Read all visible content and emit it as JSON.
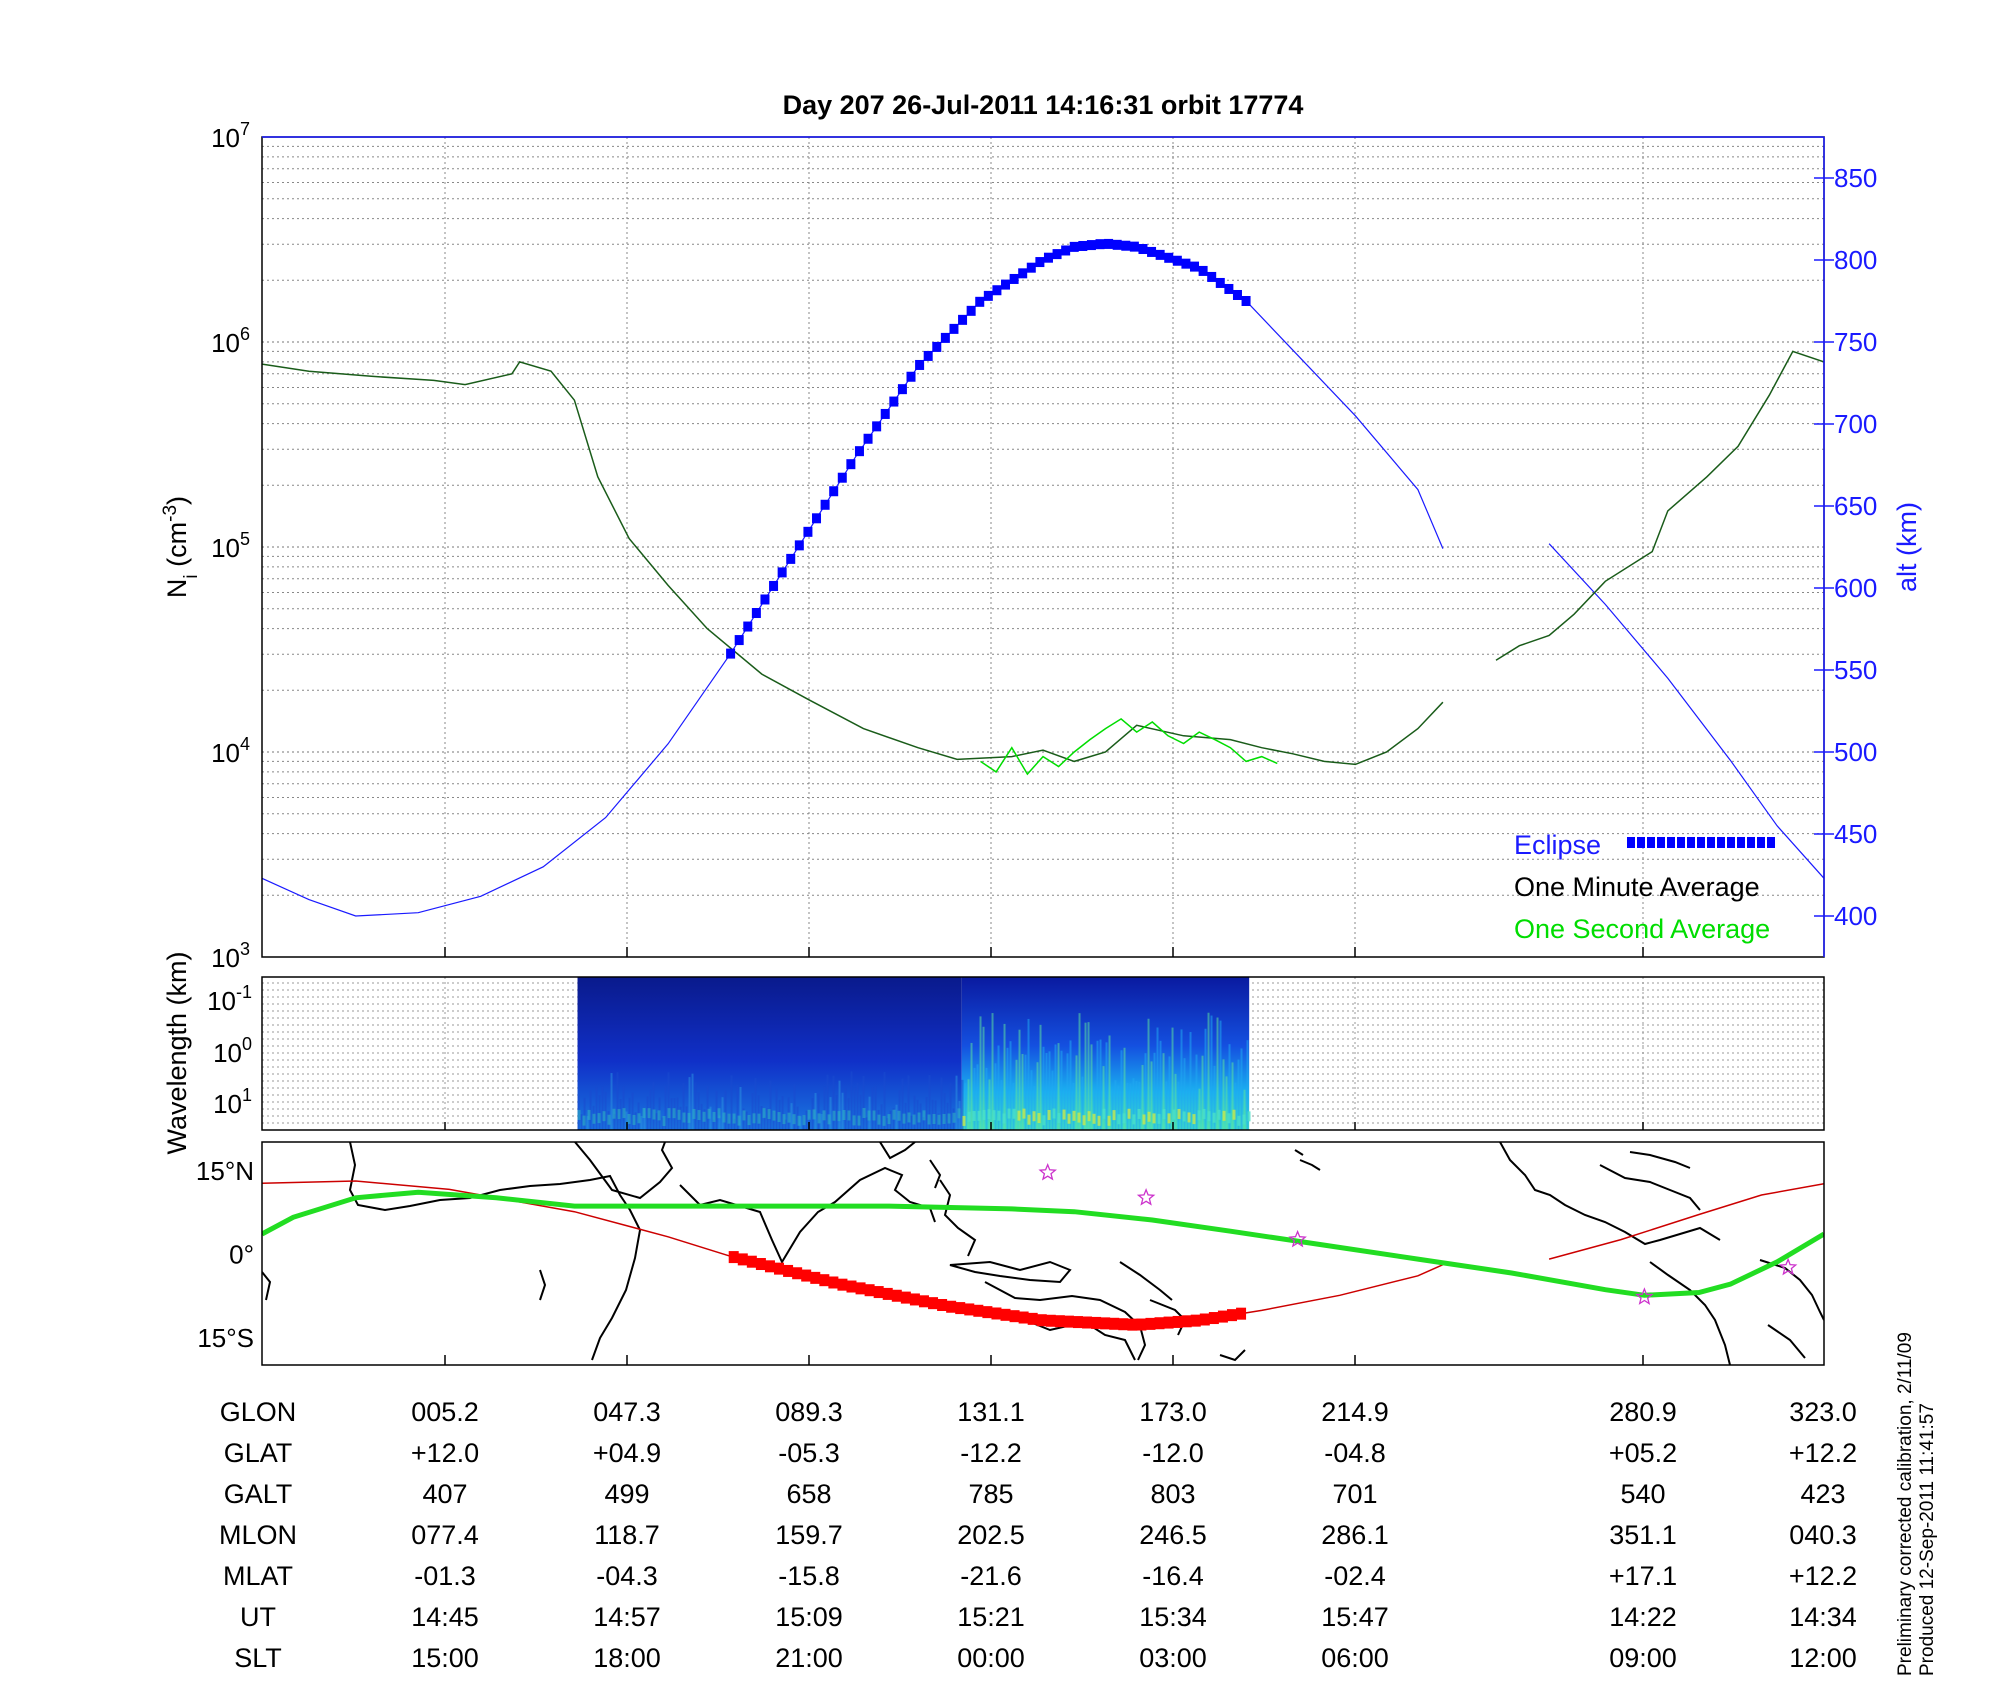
{
  "title": "Day 207  26-Jul-2011 14:16:31   orbit 17774",
  "colors": {
    "altitude_axis": "#1a1aff",
    "eclipse": "#0000ff",
    "one_minute_average": "#1a5c1a",
    "one_second_average": "#00dd00",
    "map_track": "#cc0000",
    "map_eclipse": "#ff0000",
    "map_magnetic_equator": "#22dd22",
    "map_stars": "#cc33cc"
  },
  "chart_data": [
    {
      "type": "line",
      "panel": "ion density",
      "ylabel": "N",
      "ylabel_subscript": "i",
      "ylabel_unit": " (cm",
      "ylabel_unit_exponent": "-3",
      "ylabel_unit_close": ")",
      "yscale": "log",
      "ylim": [
        1000,
        10000000
      ],
      "y_tick_labels": [
        {
          "base": "10",
          "exp": "3"
        },
        {
          "base": "10",
          "exp": "4"
        },
        {
          "base": "10",
          "exp": "5"
        },
        {
          "base": "10",
          "exp": "6"
        },
        {
          "base": "10",
          "exp": "7"
        }
      ],
      "y2label": "alt (km)",
      "y2lim": [
        375,
        875
      ],
      "y2_ticks": [
        "400",
        "450",
        "500",
        "550",
        "600",
        "650",
        "700",
        "750",
        "800",
        "850"
      ],
      "x_gap": [
        0.756,
        0.824
      ],
      "legend": [
        {
          "label": "Eclipse",
          "color": "#1a1aff",
          "swatch": "#0000ff"
        },
        {
          "label": "One Minute Average",
          "color": "#000000",
          "swatch": null
        },
        {
          "label": "One Second Average",
          "color": "#00dd00",
          "swatch": null
        }
      ],
      "series": [
        {
          "name": "One Minute Average",
          "axis": "left",
          "points": [
            [
              0.0,
              780000
            ],
            [
              0.03,
              720000
            ],
            [
              0.07,
              680000
            ],
            [
              0.11,
              650000
            ],
            [
              0.13,
              620000
            ],
            [
              0.16,
              700000
            ],
            [
              0.165,
              800000
            ],
            [
              0.185,
              720000
            ],
            [
              0.2,
              520000
            ],
            [
              0.215,
              220000
            ],
            [
              0.235,
              110000
            ],
            [
              0.26,
              65000
            ],
            [
              0.285,
              40000
            ],
            [
              0.32,
              24000
            ],
            [
              0.35,
              18000
            ],
            [
              0.385,
              13000
            ],
            [
              0.42,
              10500
            ],
            [
              0.445,
              9200
            ],
            [
              0.48,
              9500
            ],
            [
              0.5,
              10200
            ],
            [
              0.52,
              9000
            ],
            [
              0.54,
              10000
            ],
            [
              0.56,
              13500
            ],
            [
              0.59,
              12000
            ],
            [
              0.62,
              11500
            ],
            [
              0.64,
              10500
            ],
            [
              0.66,
              9800
            ],
            [
              0.68,
              9000
            ],
            [
              0.7,
              8700
            ],
            [
              0.72,
              10000
            ],
            [
              0.74,
              13000
            ],
            [
              0.756,
              17500
            ],
            [
              0.79,
              28000
            ],
            [
              0.805,
              33000
            ],
            [
              0.824,
              37000
            ],
            [
              0.84,
              47000
            ],
            [
              0.86,
              68000
            ],
            [
              0.89,
              95000
            ],
            [
              0.9,
              150000
            ],
            [
              0.925,
              220000
            ],
            [
              0.945,
              310000
            ],
            [
              0.965,
              550000
            ],
            [
              0.98,
              900000
            ],
            [
              1.0,
              800000
            ]
          ]
        },
        {
          "name": "One Second Average",
          "axis": "left",
          "points": [
            [
              0.46,
              9000
            ],
            [
              0.47,
              8000
            ],
            [
              0.48,
              10500
            ],
            [
              0.49,
              7800
            ],
            [
              0.5,
              9500
            ],
            [
              0.51,
              8500
            ],
            [
              0.52,
              10000
            ],
            [
              0.53,
              11500
            ],
            [
              0.54,
              13000
            ],
            [
              0.55,
              14500
            ],
            [
              0.56,
              12500
            ],
            [
              0.57,
              14000
            ],
            [
              0.58,
              12000
            ],
            [
              0.59,
              11000
            ],
            [
              0.6,
              12500
            ],
            [
              0.61,
              11500
            ],
            [
              0.62,
              10500
            ],
            [
              0.63,
              9000
            ],
            [
              0.64,
              9500
            ],
            [
              0.65,
              8800
            ]
          ]
        },
        {
          "name": "Altitude",
          "axis": "right",
          "points": [
            [
              0.0,
              423
            ],
            [
              0.03,
              410
            ],
            [
              0.06,
              400
            ],
            [
              0.1,
              402
            ],
            [
              0.14,
              412
            ],
            [
              0.18,
              430
            ],
            [
              0.22,
              460
            ],
            [
              0.26,
              505
            ],
            [
              0.3,
              560
            ],
            [
              0.34,
              620
            ],
            [
              0.38,
              680
            ],
            [
              0.42,
              735
            ],
            [
              0.46,
              775
            ],
            [
              0.5,
              800
            ],
            [
              0.52,
              808
            ],
            [
              0.54,
              810
            ],
            [
              0.56,
              808
            ],
            [
              0.6,
              795
            ],
            [
              0.63,
              775
            ],
            [
              0.66,
              745
            ],
            [
              0.7,
              705
            ],
            [
              0.74,
              660
            ],
            [
              0.756,
              624
            ],
            [
              0.824,
              627
            ],
            [
              0.86,
              590
            ],
            [
              0.9,
              545
            ],
            [
              0.94,
              495
            ],
            [
              0.97,
              455
            ],
            [
              1.0,
              423
            ]
          ]
        },
        {
          "name": "Eclipse",
          "axis": "right",
          "x_range": [
            0.3,
            0.632
          ]
        }
      ]
    },
    {
      "type": "heatmap",
      "panel": "wavelength spectrogram",
      "ylabel": "Wavelength (km)",
      "yscale": "log",
      "y_tick_labels": [
        {
          "base": "10",
          "exp": "-1"
        },
        {
          "base": "10",
          "exp": "0"
        },
        {
          "base": "10",
          "exp": "1"
        }
      ],
      "x_range": [
        0.202,
        0.632
      ],
      "high_activity_range": [
        0.448,
        0.632
      ]
    },
    {
      "type": "line",
      "panel": "ground track map",
      "lat_ticks": [
        "15°N",
        "0°",
        "15°S"
      ],
      "series": [
        {
          "name": "Satellite track",
          "points": [
            [
              0.0,
              12.6
            ],
            [
              0.06,
              13.0
            ],
            [
              0.12,
              11.5
            ],
            [
              0.2,
              7.5
            ],
            [
              0.26,
              3.0
            ],
            [
              0.3,
              -0.5
            ],
            [
              0.37,
              -5.5
            ],
            [
              0.44,
              -9.5
            ],
            [
              0.5,
              -12.0
            ],
            [
              0.56,
              -12.8
            ],
            [
              0.6,
              -12.0
            ],
            [
              0.64,
              -10.2
            ],
            [
              0.69,
              -7.5
            ],
            [
              0.74,
              -4.0
            ],
            [
              0.756,
              -2.0
            ],
            [
              0.824,
              -1.0
            ],
            [
              0.87,
              2.5
            ],
            [
              0.92,
              7.0
            ],
            [
              0.96,
              10.5
            ],
            [
              1.0,
              12.5
            ]
          ]
        },
        {
          "name": "Eclipse segment",
          "x_range": [
            0.302,
            0.632
          ]
        },
        {
          "name": "Magnetic equator",
          "points": [
            [
              0.0,
              3.5
            ],
            [
              0.02,
              6.5
            ],
            [
              0.06,
              10.0
            ],
            [
              0.1,
              11.0
            ],
            [
              0.15,
              10.0
            ],
            [
              0.2,
              8.5
            ],
            [
              0.26,
              8.5
            ],
            [
              0.33,
              8.5
            ],
            [
              0.4,
              8.5
            ],
            [
              0.48,
              8.0
            ],
            [
              0.52,
              7.5
            ],
            [
              0.57,
              6.0
            ],
            [
              0.62,
              4.0
            ],
            [
              0.68,
              1.5
            ],
            [
              0.74,
              -1.0
            ],
            [
              0.8,
              -3.5
            ],
            [
              0.86,
              -6.5
            ],
            [
              0.885,
              -7.5
            ],
            [
              0.92,
              -7.0
            ],
            [
              0.94,
              -5.5
            ],
            [
              0.97,
              -1.5
            ],
            [
              1.0,
              3.5
            ]
          ]
        },
        {
          "name": "Stars",
          "points": [
            [
              0.503,
              14.5
            ],
            [
              0.566,
              10.0
            ],
            [
              0.663,
              2.5
            ],
            [
              0.977,
              -2.5
            ],
            [
              0.885,
              -7.8
            ]
          ]
        }
      ]
    },
    {
      "type": "table",
      "panel": "orbit parameters",
      "row_labels": [
        "GLON",
        "GLAT",
        "GALT",
        "MLON",
        "MLAT",
        "UT",
        "SLT"
      ],
      "columns": [
        {
          "values": [
            "005.2",
            "+12.0",
            "407",
            "077.4",
            "-01.3",
            "14:45",
            "15:00"
          ]
        },
        {
          "values": [
            "047.3",
            "+04.9",
            "499",
            "118.7",
            "-04.3",
            "14:57",
            "18:00"
          ]
        },
        {
          "values": [
            "089.3",
            "-05.3",
            "658",
            "159.7",
            "-15.8",
            "15:09",
            "21:00"
          ]
        },
        {
          "values": [
            "131.1",
            "-12.2",
            "785",
            "202.5",
            "-21.6",
            "15:21",
            "00:00"
          ]
        },
        {
          "values": [
            "173.0",
            "-12.0",
            "803",
            "246.5",
            "-16.4",
            "15:34",
            "03:00"
          ]
        },
        {
          "values": [
            "214.9",
            "-04.8",
            "701",
            "286.1",
            "-02.4",
            "15:47",
            "06:00"
          ]
        },
        {
          "values": [
            "280.9",
            "+05.2",
            "540",
            "351.1",
            "+17.1",
            "14:22",
            "09:00"
          ]
        },
        {
          "values": [
            "323.0",
            "+12.2",
            "423",
            "040.3",
            "+12.2",
            "14:34",
            "12:00"
          ]
        }
      ]
    }
  ],
  "footnote": {
    "line1": "Preliminary corrected calibration, 2/11/09",
    "line2": "Produced 12-Sep-2011 11:41:57"
  }
}
